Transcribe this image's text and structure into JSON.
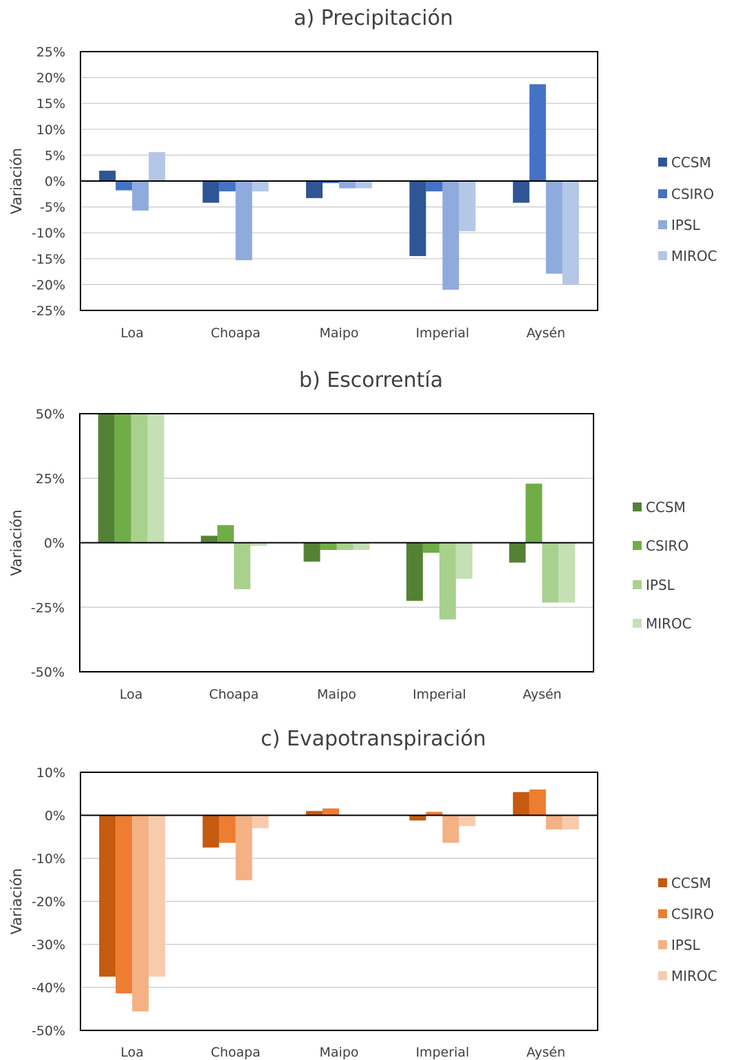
{
  "chart_data": [
    {
      "type": "bar",
      "title": "a) Precipitación",
      "ylabel": "Variación",
      "xlabel": "",
      "categories": [
        "Loa",
        "Choapa",
        "Maipo",
        "Imperial",
        "Aysén"
      ],
      "ylim": [
        -25,
        25
      ],
      "yticks": [
        25,
        20,
        15,
        10,
        5,
        0,
        -5,
        -10,
        -15,
        -20,
        -25
      ],
      "ytick_labels": [
        "25%",
        "20%",
        "15%",
        "10%",
        "5%",
        "0%",
        "-5%",
        "-10%",
        "-15%",
        "-20%",
        "-25%"
      ],
      "grid": true,
      "legend_position": "right",
      "series": [
        {
          "name": "CCSM",
          "color": "#2f5597",
          "values": [
            2.0,
            -4.2,
            -3.3,
            -14.5,
            -4.2
          ]
        },
        {
          "name": "CSIRO",
          "color": "#4472c4",
          "values": [
            -1.8,
            -2.0,
            -0.4,
            -2.0,
            18.7
          ]
        },
        {
          "name": "IPSL",
          "color": "#8faadc",
          "values": [
            -5.7,
            -15.3,
            -1.4,
            -21.0,
            -17.9
          ]
        },
        {
          "name": "MIROC",
          "color": "#b4c7e7",
          "values": [
            5.6,
            -2.0,
            -1.4,
            -9.7,
            -20.0
          ]
        }
      ]
    },
    {
      "type": "bar",
      "title": "b) Escorrentía",
      "ylabel": "Variación",
      "xlabel": "",
      "categories": [
        "Loa",
        "Choapa",
        "Maipo",
        "Imperial",
        "Aysén"
      ],
      "ylim": [
        -50,
        50
      ],
      "yticks": [
        50,
        25,
        0,
        -25,
        -50
      ],
      "ytick_labels": [
        "50%",
        "25%",
        "0%",
        "-25%",
        "-50%"
      ],
      "grid": true,
      "legend_position": "right",
      "series": [
        {
          "name": "CCSM",
          "color": "#548235",
          "values": [
            50,
            2.7,
            -7.3,
            -22.5,
            -7.7
          ]
        },
        {
          "name": "CSIRO",
          "color": "#70ad47",
          "values": [
            50,
            6.8,
            -2.8,
            -3.9,
            22.9
          ]
        },
        {
          "name": "IPSL",
          "color": "#a9d18e",
          "values": [
            50,
            -18.0,
            -2.8,
            -29.7,
            -23.2
          ]
        },
        {
          "name": "MIROC",
          "color": "#c5e0b4",
          "values": [
            50,
            -1.2,
            -2.8,
            -14.0,
            -23.2
          ]
        }
      ]
    },
    {
      "type": "bar",
      "title": "c) Evapotranspiración",
      "ylabel": "Variación",
      "xlabel": "",
      "categories": [
        "Loa",
        "Choapa",
        "Maipo",
        "Imperial",
        "Aysén"
      ],
      "ylim": [
        -50,
        10
      ],
      "yticks": [
        10,
        0,
        -10,
        -20,
        -30,
        -40,
        -50
      ],
      "ytick_labels": [
        "10%",
        "0%",
        "-10%",
        "-20%",
        "-30%",
        "-40%",
        "-50%"
      ],
      "grid": true,
      "legend_position": "right",
      "series": [
        {
          "name": "CCSM",
          "color": "#c55a11",
          "values": [
            -37.5,
            -7.5,
            1.0,
            -1.2,
            5.4
          ]
        },
        {
          "name": "CSIRO",
          "color": "#ed7d31",
          "values": [
            -41.4,
            -6.4,
            1.6,
            0.8,
            6.0
          ]
        },
        {
          "name": "IPSL",
          "color": "#f4b183",
          "values": [
            -45.6,
            -15.1,
            0,
            -6.4,
            -3.3
          ]
        },
        {
          "name": "MIROC",
          "color": "#f8cbad",
          "values": [
            -37.5,
            -3.0,
            0,
            -2.5,
            -3.3
          ]
        }
      ]
    }
  ]
}
